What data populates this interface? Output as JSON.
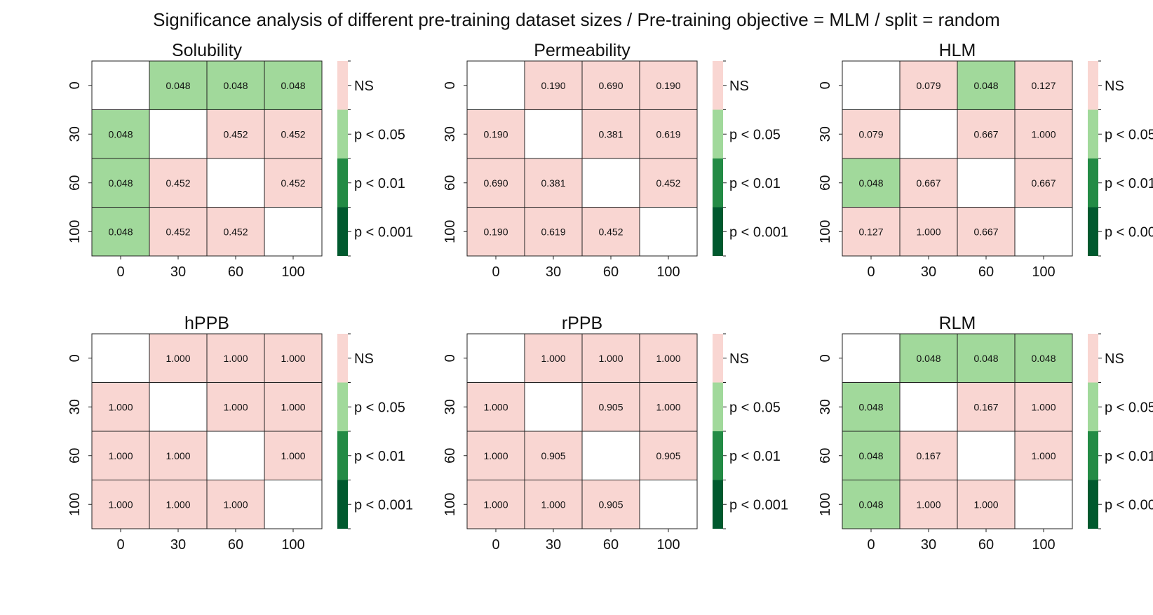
{
  "figure": {
    "title": "Significance analysis of different pre-training dataset sizes / Pre-training objective = MLM / split = random"
  },
  "legend": {
    "bins": [
      {
        "label": "NS",
        "color": "#f9d6d2"
      },
      {
        "label": "p < 0.05",
        "color": "#a1d99b"
      },
      {
        "label": "p < 0.01",
        "color": "#238b45"
      },
      {
        "label": "p < 0.001",
        "color": "#00592e"
      }
    ]
  },
  "chart_data": [
    {
      "type": "heatmap",
      "title": "Solubility",
      "rows": [
        "0",
        "30",
        "60",
        "100"
      ],
      "cols": [
        "0",
        "30",
        "60",
        "100"
      ],
      "values": [
        [
          null,
          "0.048",
          "0.048",
          "0.048"
        ],
        [
          "0.048",
          null,
          "0.452",
          "0.452"
        ],
        [
          "0.048",
          "0.452",
          null,
          "0.452"
        ],
        [
          "0.048",
          "0.452",
          "0.452",
          null
        ]
      ]
    },
    {
      "type": "heatmap",
      "title": "Permeability",
      "rows": [
        "0",
        "30",
        "60",
        "100"
      ],
      "cols": [
        "0",
        "30",
        "60",
        "100"
      ],
      "values": [
        [
          null,
          "0.190",
          "0.690",
          "0.190"
        ],
        [
          "0.190",
          null,
          "0.381",
          "0.619"
        ],
        [
          "0.690",
          "0.381",
          null,
          "0.452"
        ],
        [
          "0.190",
          "0.619",
          "0.452",
          null
        ]
      ]
    },
    {
      "type": "heatmap",
      "title": "HLM",
      "rows": [
        "0",
        "30",
        "60",
        "100"
      ],
      "cols": [
        "0",
        "30",
        "60",
        "100"
      ],
      "values": [
        [
          null,
          "0.079",
          "0.048",
          "0.127"
        ],
        [
          "0.079",
          null,
          "0.667",
          "1.000"
        ],
        [
          "0.048",
          "0.667",
          null,
          "0.667"
        ],
        [
          "0.127",
          "1.000",
          "0.667",
          null
        ]
      ]
    },
    {
      "type": "heatmap",
      "title": "hPPB",
      "rows": [
        "0",
        "30",
        "60",
        "100"
      ],
      "cols": [
        "0",
        "30",
        "60",
        "100"
      ],
      "values": [
        [
          null,
          "1.000",
          "1.000",
          "1.000"
        ],
        [
          "1.000",
          null,
          "1.000",
          "1.000"
        ],
        [
          "1.000",
          "1.000",
          null,
          "1.000"
        ],
        [
          "1.000",
          "1.000",
          "1.000",
          null
        ]
      ]
    },
    {
      "type": "heatmap",
      "title": "rPPB",
      "rows": [
        "0",
        "30",
        "60",
        "100"
      ],
      "cols": [
        "0",
        "30",
        "60",
        "100"
      ],
      "values": [
        [
          null,
          "1.000",
          "1.000",
          "1.000"
        ],
        [
          "1.000",
          null,
          "0.905",
          "1.000"
        ],
        [
          "1.000",
          "0.905",
          null,
          "0.905"
        ],
        [
          "1.000",
          "1.000",
          "0.905",
          null
        ]
      ]
    },
    {
      "type": "heatmap",
      "title": "RLM",
      "rows": [
        "0",
        "30",
        "60",
        "100"
      ],
      "cols": [
        "0",
        "30",
        "60",
        "100"
      ],
      "values": [
        [
          null,
          "0.048",
          "0.048",
          "0.048"
        ],
        [
          "0.048",
          null,
          "0.167",
          "1.000"
        ],
        [
          "0.048",
          "0.167",
          null,
          "1.000"
        ],
        [
          "0.048",
          "1.000",
          "1.000",
          null
        ]
      ]
    }
  ]
}
